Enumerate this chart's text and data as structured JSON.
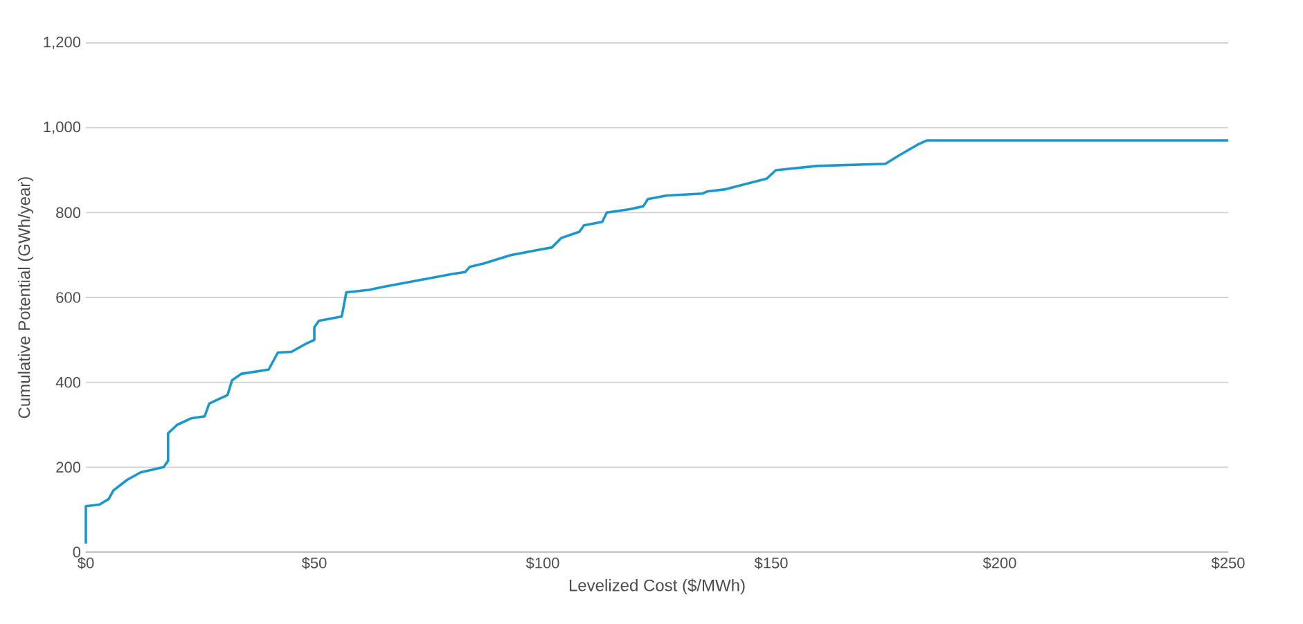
{
  "chart_data": {
    "type": "line",
    "xlabel": "Levelized Cost ($/MWh)",
    "ylabel": "Cumulative Potential (GWh/year)",
    "xlim": [
      0,
      250
    ],
    "ylim": [
      0,
      1200
    ],
    "xticks": [
      {
        "value": 0,
        "label": "$0"
      },
      {
        "value": 50,
        "label": "$50"
      },
      {
        "value": 100,
        "label": "$100"
      },
      {
        "value": 150,
        "label": "$150"
      },
      {
        "value": 200,
        "label": "$200"
      },
      {
        "value": 250,
        "label": "$250"
      }
    ],
    "yticks": [
      {
        "value": 0,
        "label": "0"
      },
      {
        "value": 200,
        "label": "200"
      },
      {
        "value": 400,
        "label": "400"
      },
      {
        "value": 600,
        "label": "600"
      },
      {
        "value": 800,
        "label": "800"
      },
      {
        "value": 1000,
        "label": "1,000"
      },
      {
        "value": 1200,
        "label": "1,200"
      }
    ],
    "grid": "y",
    "marker": "none",
    "line_style": "solid",
    "series": [
      {
        "color": "#1b97cc",
        "x": [
          0,
          0,
          3,
          5,
          6,
          9,
          12,
          17,
          18,
          18,
          20,
          23,
          26,
          27,
          29,
          31,
          32,
          34,
          40,
          42,
          45,
          48,
          50,
          50,
          51,
          56,
          57,
          62,
          65,
          70,
          75,
          80,
          83,
          84,
          87,
          90,
          93,
          98,
          102,
          104,
          108,
          109,
          113,
          114,
          119,
          122,
          123,
          127,
          135,
          136,
          140,
          146,
          149,
          151,
          160,
          175,
          178,
          182,
          184,
          250
        ],
        "values": [
          20,
          108,
          112,
          125,
          145,
          170,
          188,
          200,
          215,
          280,
          300,
          315,
          320,
          350,
          360,
          370,
          405,
          420,
          430,
          470,
          472,
          490,
          500,
          530,
          545,
          555,
          612,
          618,
          625,
          635,
          645,
          655,
          660,
          672,
          680,
          690,
          700,
          710,
          718,
          740,
          755,
          770,
          778,
          800,
          808,
          815,
          832,
          840,
          845,
          850,
          855,
          872,
          880,
          900,
          910,
          915,
          935,
          960,
          970,
          970
        ]
      }
    ]
  }
}
